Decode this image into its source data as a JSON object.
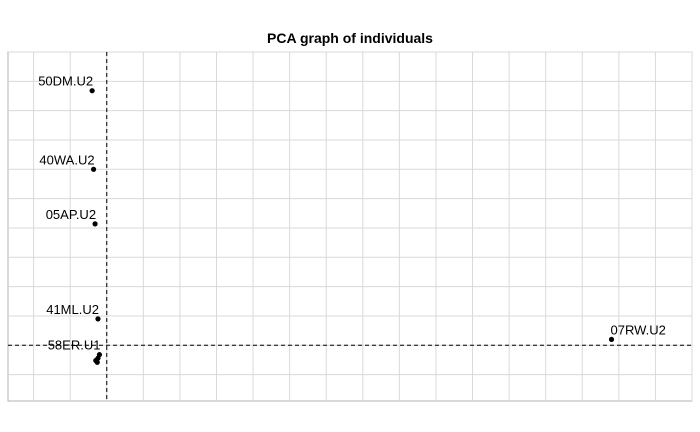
{
  "chart_data": {
    "type": "scatter",
    "title": "PCA graph of individuals",
    "xlabel": "",
    "ylabel": "",
    "grid": true,
    "xlim": [
      -1.35,
      8.0
    ],
    "ylim": [
      -0.95,
      5.0
    ],
    "reference_lines": {
      "x": 0,
      "y": 0
    },
    "points": [
      {
        "label": "50DM.U2",
        "x": -0.2,
        "y": 4.34
      },
      {
        "label": "40WA.U2",
        "x": -0.18,
        "y": 3.0
      },
      {
        "label": "05AP.U2",
        "x": -0.16,
        "y": 2.07
      },
      {
        "label": "41ML.U2",
        "x": -0.12,
        "y": 0.45
      },
      {
        "label": "07RW.U2",
        "x": 6.9,
        "y": 0.1
      },
      {
        "label": "58ER.U1",
        "x": -0.1,
        "y": -0.16
      },
      {
        "label": "",
        "x": -0.12,
        "y": -0.22
      },
      {
        "label": "",
        "x": -0.15,
        "y": -0.26
      },
      {
        "label": "",
        "x": -0.13,
        "y": -0.29
      }
    ]
  }
}
